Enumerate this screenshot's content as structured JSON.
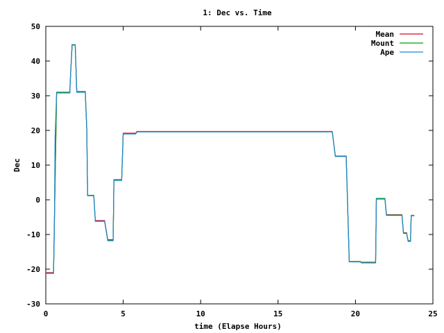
{
  "chart_data": {
    "type": "line",
    "title": "1: Dec vs. Time",
    "xlabel": "time (Elapse Hours)",
    "ylabel": "Dec",
    "xlim": [
      0,
      25
    ],
    "ylim": [
      -30,
      50
    ],
    "xticks": [
      0,
      5,
      10,
      15,
      20,
      25
    ],
    "yticks": [
      -30,
      -20,
      -10,
      0,
      10,
      20,
      30,
      40,
      50
    ],
    "grid": false,
    "legend_position": "top-right",
    "series": [
      {
        "name": "Mean",
        "color": "#e0002a",
        "points": [
          [
            0.0,
            -21.0
          ],
          [
            0.5,
            -21.0
          ],
          [
            0.7,
            31.0
          ],
          [
            1.55,
            31.0
          ],
          [
            1.6,
            36.0
          ],
          [
            1.7,
            44.7
          ],
          [
            1.9,
            44.7
          ],
          [
            2.0,
            31.2
          ],
          [
            2.55,
            31.2
          ],
          [
            2.65,
            20.0
          ],
          [
            2.7,
            1.2
          ],
          [
            3.1,
            1.2
          ],
          [
            3.2,
            -6.0
          ],
          [
            3.8,
            -6.0
          ],
          [
            4.0,
            -11.5
          ],
          [
            4.35,
            -11.5
          ],
          [
            4.4,
            5.8
          ],
          [
            4.9,
            5.8
          ],
          [
            5.0,
            19.2
          ],
          [
            5.8,
            19.2
          ],
          [
            5.9,
            19.7
          ],
          [
            7.3,
            19.7
          ],
          [
            18.5,
            19.7
          ],
          [
            18.7,
            12.6
          ],
          [
            19.4,
            12.6
          ],
          [
            19.6,
            -17.8
          ],
          [
            20.3,
            -17.8
          ],
          [
            20.4,
            -18.0
          ],
          [
            21.3,
            -18.0
          ],
          [
            21.35,
            0.3
          ],
          [
            21.9,
            0.3
          ],
          [
            22.0,
            -4.3
          ],
          [
            23.0,
            -4.3
          ],
          [
            23.1,
            -9.5
          ],
          [
            23.3,
            -9.5
          ],
          [
            23.4,
            -11.8
          ],
          [
            23.55,
            -11.8
          ],
          [
            23.6,
            -4.5
          ],
          [
            23.8,
            -4.5
          ]
        ]
      },
      {
        "name": "Mount",
        "color": "#00a000",
        "points": [
          [
            0.0,
            -21.2
          ],
          [
            0.5,
            -21.2
          ],
          [
            0.7,
            31.0
          ],
          [
            1.55,
            31.0
          ],
          [
            1.6,
            36.0
          ],
          [
            1.7,
            44.7
          ],
          [
            1.9,
            44.7
          ],
          [
            2.0,
            31.2
          ],
          [
            2.55,
            31.2
          ],
          [
            2.65,
            20.0
          ],
          [
            2.7,
            1.3
          ],
          [
            3.1,
            1.3
          ],
          [
            3.2,
            -6.2
          ],
          [
            3.8,
            -6.2
          ],
          [
            4.0,
            -11.7
          ],
          [
            4.35,
            -11.7
          ],
          [
            4.4,
            5.7
          ],
          [
            4.9,
            5.7
          ],
          [
            5.0,
            19.0
          ],
          [
            5.8,
            19.0
          ],
          [
            5.9,
            19.6
          ],
          [
            18.5,
            19.6
          ],
          [
            18.7,
            12.5
          ],
          [
            19.4,
            12.5
          ],
          [
            19.6,
            -17.8
          ],
          [
            20.3,
            -17.8
          ],
          [
            20.4,
            -18.1
          ],
          [
            21.3,
            -18.1
          ],
          [
            21.35,
            0.4
          ],
          [
            21.9,
            0.4
          ],
          [
            22.0,
            -4.4
          ],
          [
            23.0,
            -4.4
          ],
          [
            23.1,
            -9.6
          ],
          [
            23.3,
            -9.6
          ],
          [
            23.4,
            -11.9
          ],
          [
            23.55,
            -11.9
          ],
          [
            23.6,
            -4.5
          ],
          [
            23.8,
            -4.5
          ]
        ]
      },
      {
        "name": "Ape",
        "color": "#1e88d6",
        "points": [
          [
            0.0,
            -21.2
          ],
          [
            0.5,
            -21.2
          ],
          [
            0.55,
            -10.0
          ],
          [
            0.6,
            18.0
          ],
          [
            0.7,
            30.8
          ],
          [
            1.55,
            30.8
          ],
          [
            1.6,
            36.0
          ],
          [
            1.7,
            44.6
          ],
          [
            1.9,
            44.6
          ],
          [
            2.0,
            31.0
          ],
          [
            2.55,
            31.0
          ],
          [
            2.65,
            20.0
          ],
          [
            2.7,
            1.2
          ],
          [
            3.1,
            1.2
          ],
          [
            3.2,
            -6.2
          ],
          [
            3.8,
            -6.2
          ],
          [
            4.0,
            -11.8
          ],
          [
            4.35,
            -11.8
          ],
          [
            4.4,
            5.6
          ],
          [
            4.9,
            5.6
          ],
          [
            5.0,
            19.0
          ],
          [
            5.8,
            19.0
          ],
          [
            5.9,
            19.6
          ],
          [
            18.5,
            19.6
          ],
          [
            18.7,
            12.5
          ],
          [
            19.4,
            12.5
          ],
          [
            19.6,
            -17.9
          ],
          [
            20.3,
            -17.9
          ],
          [
            20.4,
            -18.2
          ],
          [
            21.3,
            -18.2
          ],
          [
            21.35,
            0.2
          ],
          [
            21.9,
            0.2
          ],
          [
            22.0,
            -4.5
          ],
          [
            23.0,
            -4.5
          ],
          [
            23.1,
            -9.7
          ],
          [
            23.3,
            -9.7
          ],
          [
            23.4,
            -12.0
          ],
          [
            23.55,
            -12.0
          ],
          [
            23.6,
            -4.6
          ],
          [
            23.8,
            -4.6
          ]
        ]
      }
    ]
  }
}
